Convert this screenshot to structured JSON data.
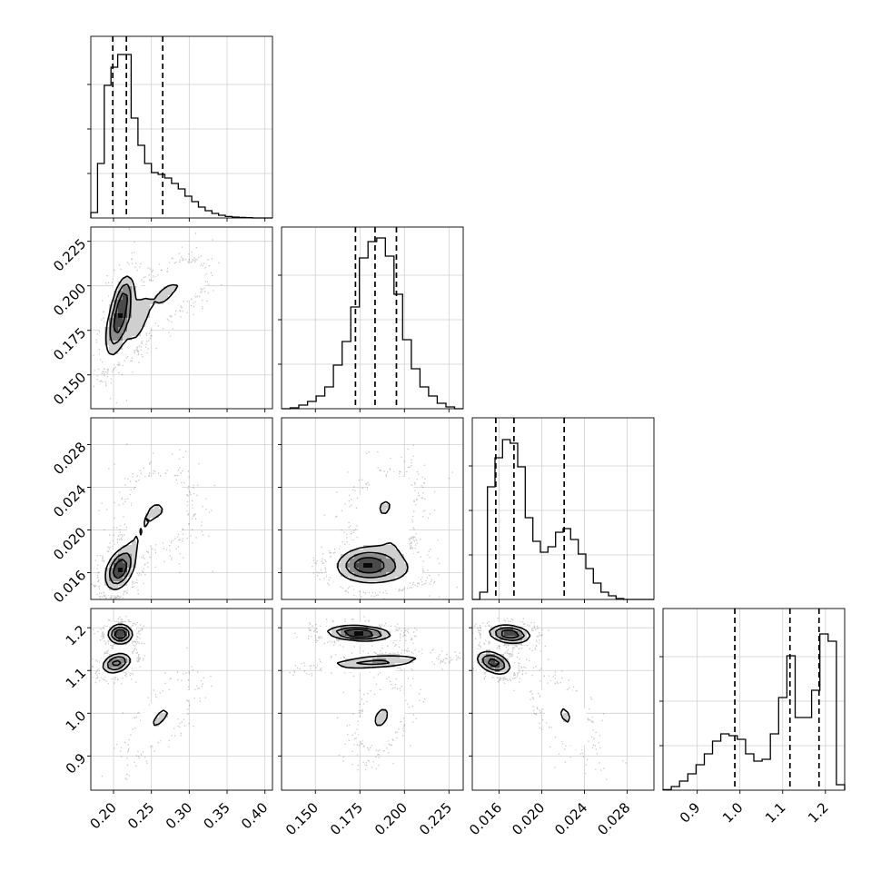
{
  "chart_data": {
    "type": "corner",
    "parameters": [
      {
        "ticks": [
          0.2,
          0.25,
          0.3,
          0.35,
          0.4
        ],
        "tick_labels": [
          "0.20",
          "0.25",
          "0.30",
          "0.35",
          "0.40"
        ],
        "range": [
          0.17,
          0.41
        ],
        "quantiles": [
          0.199,
          0.217,
          0.265
        ]
      },
      {
        "ticks": [
          0.15,
          0.175,
          0.2,
          0.225
        ],
        "tick_labels": [
          "0.150",
          "0.175",
          "0.200",
          "0.225"
        ],
        "range": [
          0.131,
          0.233
        ],
        "quantiles": [
          0.1725,
          0.1835,
          0.1955
        ]
      },
      {
        "ticks": [
          0.016,
          0.02,
          0.024,
          0.028
        ],
        "tick_labels": [
          "0.016",
          "0.020",
          "0.024",
          "0.028"
        ],
        "range": [
          0.0135,
          0.0305
        ],
        "quantiles": [
          0.0157,
          0.0174,
          0.0221
        ]
      },
      {
        "ticks": [
          0.9,
          1.0,
          1.1,
          1.2
        ],
        "tick_labels": [
          "0.9",
          "1.0",
          "1.1",
          "1.2"
        ],
        "range": [
          0.82,
          1.245
        ],
        "quantiles": [
          0.988,
          1.117,
          1.185
        ]
      }
    ],
    "histograms": [
      {
        "counts": [
          0.03,
          0.3,
          0.73,
          0.83,
          0.9,
          0.9,
          0.55,
          0.4,
          0.3,
          0.25,
          0.24,
          0.22,
          0.19,
          0.16,
          0.12,
          0.09,
          0.06,
          0.04,
          0.025,
          0.015,
          0.008,
          0.005,
          0.003,
          0.002,
          0.0,
          0.0,
          0.0
        ]
      },
      {
        "counts": [
          0.0,
          0.005,
          0.02,
          0.04,
          0.07,
          0.12,
          0.24,
          0.37,
          0.56,
          0.83,
          0.92,
          0.94,
          0.84,
          0.63,
          0.38,
          0.22,
          0.12,
          0.07,
          0.03,
          0.01,
          0.0
        ]
      },
      {
        "counts": [
          0.0,
          0.04,
          0.62,
          0.78,
          0.88,
          0.86,
          0.73,
          0.45,
          0.32,
          0.26,
          0.29,
          0.37,
          0.39,
          0.33,
          0.25,
          0.17,
          0.09,
          0.04,
          0.02,
          0.005,
          0.0,
          0.0,
          0.0,
          0.0
        ]
      },
      {
        "counts": [
          0.003,
          0.02,
          0.05,
          0.09,
          0.14,
          0.2,
          0.27,
          0.31,
          0.3,
          0.28,
          0.2,
          0.16,
          0.17,
          0.31,
          0.51,
          0.74,
          0.4,
          0.4,
          0.55,
          0.86,
          0.82,
          0.03
        ]
      }
    ],
    "levels": [
      0.3,
      0.55,
      0.8
    ],
    "pairs": [
      {
        "x": 0,
        "y": 1,
        "modes": [
          {
            "mx": 0.207,
            "my": 0.181,
            "sx": 0.011,
            "sy": 0.013,
            "r": 0.55,
            "w": 1.0
          },
          {
            "mx": 0.232,
            "my": 0.18,
            "sx": 0.01,
            "sy": 0.01,
            "r": 0.5,
            "w": 0.45
          },
          {
            "mx": 0.265,
            "my": 0.194,
            "sx": 0.018,
            "sy": 0.009,
            "r": 0.45,
            "w": 0.33
          },
          {
            "mx": 0.215,
            "my": 0.196,
            "sx": 0.008,
            "sy": 0.007,
            "r": 0.3,
            "w": 0.35
          },
          {
            "mx": 0.3,
            "my": 0.203,
            "sx": 0.016,
            "sy": 0.007,
            "r": 0.2,
            "w": 0.22
          }
        ]
      },
      {
        "x": 0,
        "y": 2,
        "modes": [
          {
            "mx": 0.208,
            "my": 0.0163,
            "sx": 0.012,
            "sy": 0.0012,
            "r": 0.35,
            "w": 1.0
          },
          {
            "mx": 0.26,
            "my": 0.0219,
            "sx": 0.026,
            "sy": 0.002,
            "r": 0.0,
            "w": 0.3
          },
          {
            "mx": 0.23,
            "my": 0.019,
            "sx": 0.012,
            "sy": 0.0015,
            "r": 0.6,
            "w": 0.22
          }
        ]
      },
      {
        "x": 1,
        "y": 2,
        "modes": [
          {
            "mx": 0.177,
            "my": 0.0168,
            "sx": 0.01,
            "sy": 0.001,
            "r": 0.1,
            "w": 1.0
          },
          {
            "mx": 0.19,
            "my": 0.0163,
            "sx": 0.012,
            "sy": 0.001,
            "r": 0.0,
            "w": 0.55
          },
          {
            "mx": 0.189,
            "my": 0.0222,
            "sx": 0.011,
            "sy": 0.002,
            "r": 0.3,
            "w": 0.4
          },
          {
            "mx": 0.194,
            "my": 0.0188,
            "sx": 0.006,
            "sy": 0.0012,
            "r": 0.0,
            "w": 0.25
          }
        ]
      },
      {
        "x": 0,
        "y": 3,
        "modes": [
          {
            "mx": 0.209,
            "my": 1.185,
            "sx": 0.01,
            "sy": 0.014,
            "r": 0.0,
            "w": 1.0
          },
          {
            "mx": 0.204,
            "my": 1.117,
            "sx": 0.012,
            "sy": 0.015,
            "r": 0.3,
            "w": 0.85
          },
          {
            "mx": 0.262,
            "my": 0.99,
            "sx": 0.025,
            "sy": 0.05,
            "r": 0.75,
            "w": 0.3
          }
        ]
      },
      {
        "x": 1,
        "y": 3,
        "modes": [
          {
            "mx": 0.1745,
            "my": 1.187,
            "sx": 0.011,
            "sy": 0.011,
            "r": -0.2,
            "w": 1.0
          },
          {
            "mx": 0.184,
            "my": 1.12,
            "sx": 0.018,
            "sy": 0.011,
            "r": 0.45,
            "w": 0.6
          },
          {
            "mx": 0.187,
            "my": 0.99,
            "sx": 0.008,
            "sy": 0.045,
            "r": 0.4,
            "w": 0.3
          }
        ]
      },
      {
        "x": 2,
        "y": 3,
        "modes": [
          {
            "mx": 0.017,
            "my": 1.185,
            "sx": 0.0012,
            "sy": 0.013,
            "r": -0.2,
            "w": 1.0
          },
          {
            "mx": 0.0155,
            "my": 1.118,
            "sx": 0.001,
            "sy": 0.017,
            "r": -0.4,
            "w": 0.9
          },
          {
            "mx": 0.0222,
            "my": 0.995,
            "sx": 0.0015,
            "sy": 0.05,
            "r": -0.55,
            "w": 0.3
          }
        ]
      }
    ]
  }
}
